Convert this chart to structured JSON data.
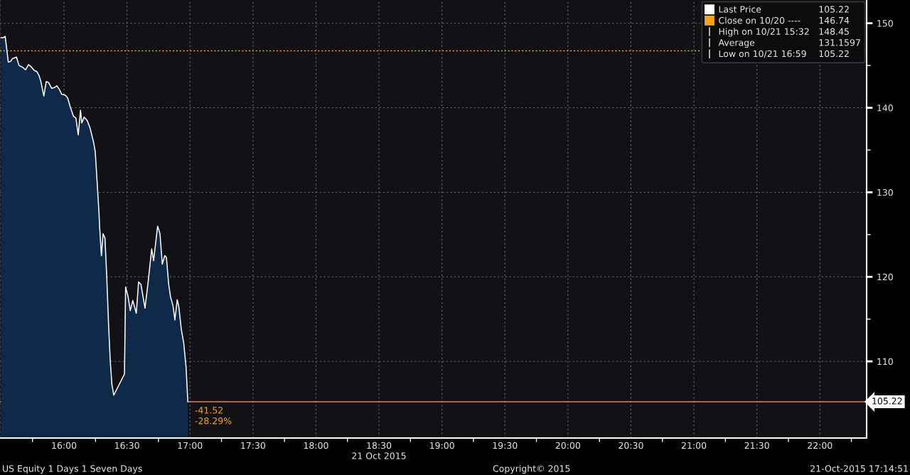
{
  "chart_data": {
    "type": "area",
    "series": [
      {
        "name": "Last Price",
        "color": "#0e2a48",
        "x": [
          15.5,
          15.52,
          15.533,
          15.558,
          15.577,
          15.59,
          15.605,
          15.623,
          15.643,
          15.671,
          15.695,
          15.718,
          15.736,
          15.765,
          15.784,
          15.802,
          15.815,
          15.84,
          15.859,
          15.877,
          15.902,
          15.925,
          15.943,
          15.962,
          15.981,
          16.009,
          16.028,
          16.052,
          16.075,
          16.094,
          16.113,
          16.131,
          16.141,
          16.16,
          16.184,
          16.207,
          16.235,
          16.248,
          16.263,
          16.278,
          16.282,
          16.297,
          16.31,
          16.325,
          16.338,
          16.354,
          16.367,
          16.38,
          16.395,
          16.48,
          16.489,
          16.508,
          16.526,
          16.546,
          16.574,
          16.592,
          16.611,
          16.643,
          16.668,
          16.696,
          16.711,
          16.743,
          16.762,
          16.78,
          16.8,
          16.813,
          16.831,
          16.846,
          16.865,
          16.88,
          16.899,
          16.912,
          16.931,
          16.95,
          16.969,
          16.983
        ],
        "values": [
          148.3,
          148.3,
          148.45,
          145.4,
          145.5,
          145.8,
          145.9,
          146.0,
          145.0,
          144.8,
          144.5,
          145.1,
          144.9,
          144.4,
          144.3,
          143.8,
          143.2,
          141.4,
          143.1,
          143.0,
          142.3,
          142.4,
          142.6,
          142.2,
          141.6,
          141.5,
          141.2,
          140.0,
          139.0,
          138.8,
          136.8,
          139.7,
          138.2,
          138.9,
          138.5,
          137.6,
          135.9,
          134.8,
          131.2,
          127.5,
          126.1,
          122.5,
          125.1,
          124.6,
          120.5,
          114.3,
          110.1,
          107.3,
          106.0,
          108.5,
          118.8,
          117.7,
          116.0,
          117.2,
          115.7,
          119.4,
          119.1,
          116.3,
          119.4,
          123.3,
          121.9,
          126.0,
          125.1,
          121.5,
          122.5,
          122.3,
          119.1,
          117.6,
          116.6,
          114.9,
          117.3,
          116.4,
          113.8,
          112.2,
          109.3,
          105.22
        ]
      }
    ],
    "xlim": [
      15.492,
      22.371
    ],
    "ylim": [
      100.93,
      152.75
    ],
    "xticks": [
      {
        "value": 15.75,
        "label": null
      },
      {
        "value": 16,
        "label": "16:00"
      },
      {
        "value": 16.25,
        "label": null
      },
      {
        "value": 16.5,
        "label": "16:30"
      },
      {
        "value": 16.75,
        "label": null
      },
      {
        "value": 17,
        "label": "17:00"
      },
      {
        "value": 17.25,
        "label": null
      },
      {
        "value": 17.5,
        "label": "17:30"
      },
      {
        "value": 17.75,
        "label": null
      },
      {
        "value": 18,
        "label": "18:00"
      },
      {
        "value": 18.25,
        "label": null
      },
      {
        "value": 18.5,
        "label": "18:30\n21 Oct 2015"
      },
      {
        "value": 18.75,
        "label": null
      },
      {
        "value": 19,
        "label": "19:00"
      },
      {
        "value": 19.25,
        "label": null
      },
      {
        "value": 19.5,
        "label": "19:30"
      },
      {
        "value": 19.75,
        "label": null
      },
      {
        "value": 20,
        "label": "20:00"
      },
      {
        "value": 20.25,
        "label": null
      },
      {
        "value": 20.5,
        "label": "20:30"
      },
      {
        "value": 20.75,
        "label": null
      },
      {
        "value": 21,
        "label": "21:00"
      },
      {
        "value": 21.25,
        "label": null
      },
      {
        "value": 21.5,
        "label": "21:30"
      },
      {
        "value": 21.75,
        "label": null
      },
      {
        "value": 22,
        "label": "22:00"
      },
      {
        "value": 22.25,
        "label": null
      }
    ],
    "yticks": [
      110,
      {
        "value": 115,
        "label": null
      },
      120,
      {
        "value": 125,
        "label": null
      },
      130,
      {
        "value": 135,
        "label": null
      },
      140,
      {
        "value": 145,
        "label": null
      },
      150
    ],
    "grid": true,
    "legend": "top right",
    "ref_lines": [
      {
        "axis": "y",
        "value": 146.74,
        "label": "Close on 10/20 ----",
        "color": "#f5a31a",
        "line_style": "dotted"
      },
      {
        "axis": "y",
        "value": 105.22,
        "label": "105.22",
        "color": "#e8845a",
        "line_style": "solid"
      }
    ],
    "annotations": [
      "\t105.22",
      "\t146.74",
      "High on 10/21 15:32\t148.45",
      "Average\t131.1597",
      "Low on 10/21 16:59\t105.22",
      {
        "text": "-41.52\n-28.29%",
        "x": 16.983,
        "y": 105.22
      },
      "US Equity 1 Days 1 Seven Days",
      "Copyright© 2015",
      "21-Oct-2015 17:14:51"
    ]
  }
}
